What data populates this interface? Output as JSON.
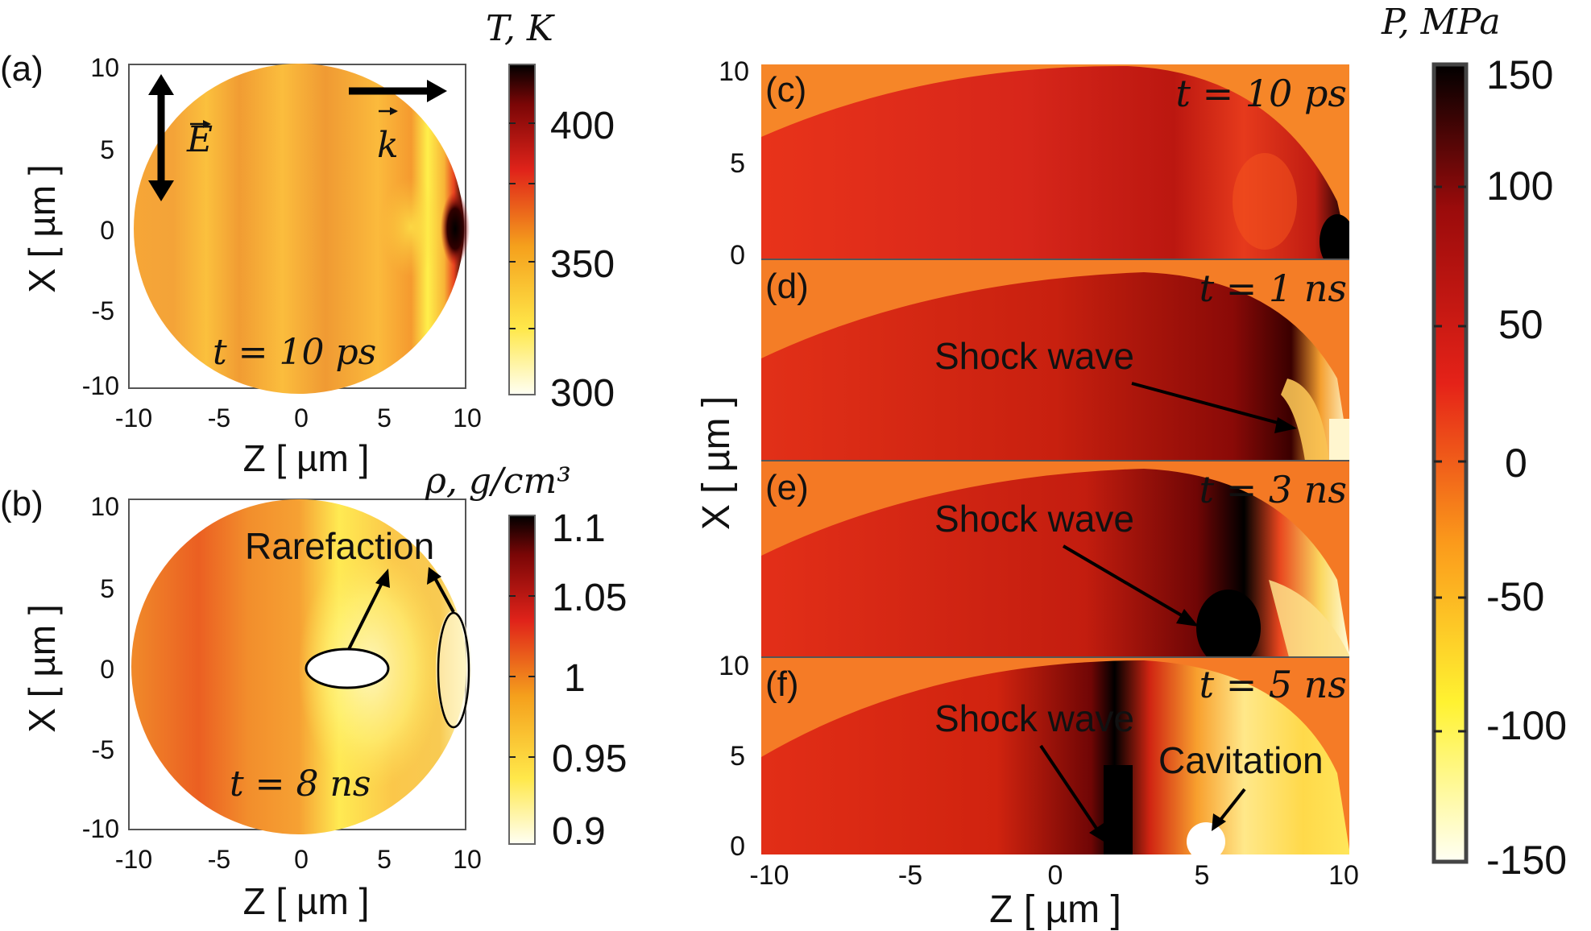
{
  "panel_a": {
    "label": "(a)",
    "time": "t = 10 ps",
    "e_field": "E",
    "k_vector": "k",
    "yticks": [
      "10",
      "5",
      "0",
      "-5",
      "-10"
    ],
    "xticks": [
      "-10",
      "-5",
      "0",
      "5",
      "10"
    ],
    "ylabel": "X [ µm ]",
    "xlabel": "Z [ µm ]",
    "colorbar": {
      "title": "T, K",
      "ticks": [
        "400",
        "350",
        "300"
      ]
    }
  },
  "panel_b": {
    "label": "(b)",
    "time": "t = 8 ns",
    "annotation": "Rarefaction",
    "yticks": [
      "10",
      "5",
      "0",
      "-5",
      "-10"
    ],
    "xticks": [
      "-10",
      "-5",
      "0",
      "5",
      "10"
    ],
    "ylabel": "X [ µm ]",
    "xlabel": "Z [ µm ]",
    "colorbar": {
      "title": "ρ, g/cm³",
      "ticks": [
        "1.1",
        "1.05",
        "1",
        "0.95",
        "0.9"
      ]
    }
  },
  "panels_right": {
    "c": {
      "label": "(c)",
      "time": "t = 10 ps"
    },
    "d": {
      "label": "(d)",
      "time": "t = 1 ns",
      "annotation": "Shock wave"
    },
    "e": {
      "label": "(e)",
      "time": "t = 3 ns",
      "annotation": "Shock wave"
    },
    "f": {
      "label": "(f)",
      "time": "t = 5 ns",
      "annotation": "Shock wave",
      "annotation2": "Cavitation"
    },
    "yticks_top": [
      "10",
      "5",
      "0"
    ],
    "yticks_bottom": [
      "10",
      "5",
      "0"
    ],
    "xticks": [
      "-10",
      "-5",
      "0",
      "5",
      "10"
    ],
    "ylabel": "X [ µm ]",
    "xlabel": "Z [ µm ]",
    "colorbar": {
      "title": "P, MPa",
      "ticks": [
        "150",
        "100",
        "50",
        "0",
        "-50",
        "-100",
        "-150"
      ]
    }
  },
  "colors": {
    "hot_dark": "#000000",
    "hot_red": "#e0150c",
    "hot_orange": "#f57d1a",
    "hot_yellow": "#ffee22",
    "hot_white": "#fffff4"
  }
}
